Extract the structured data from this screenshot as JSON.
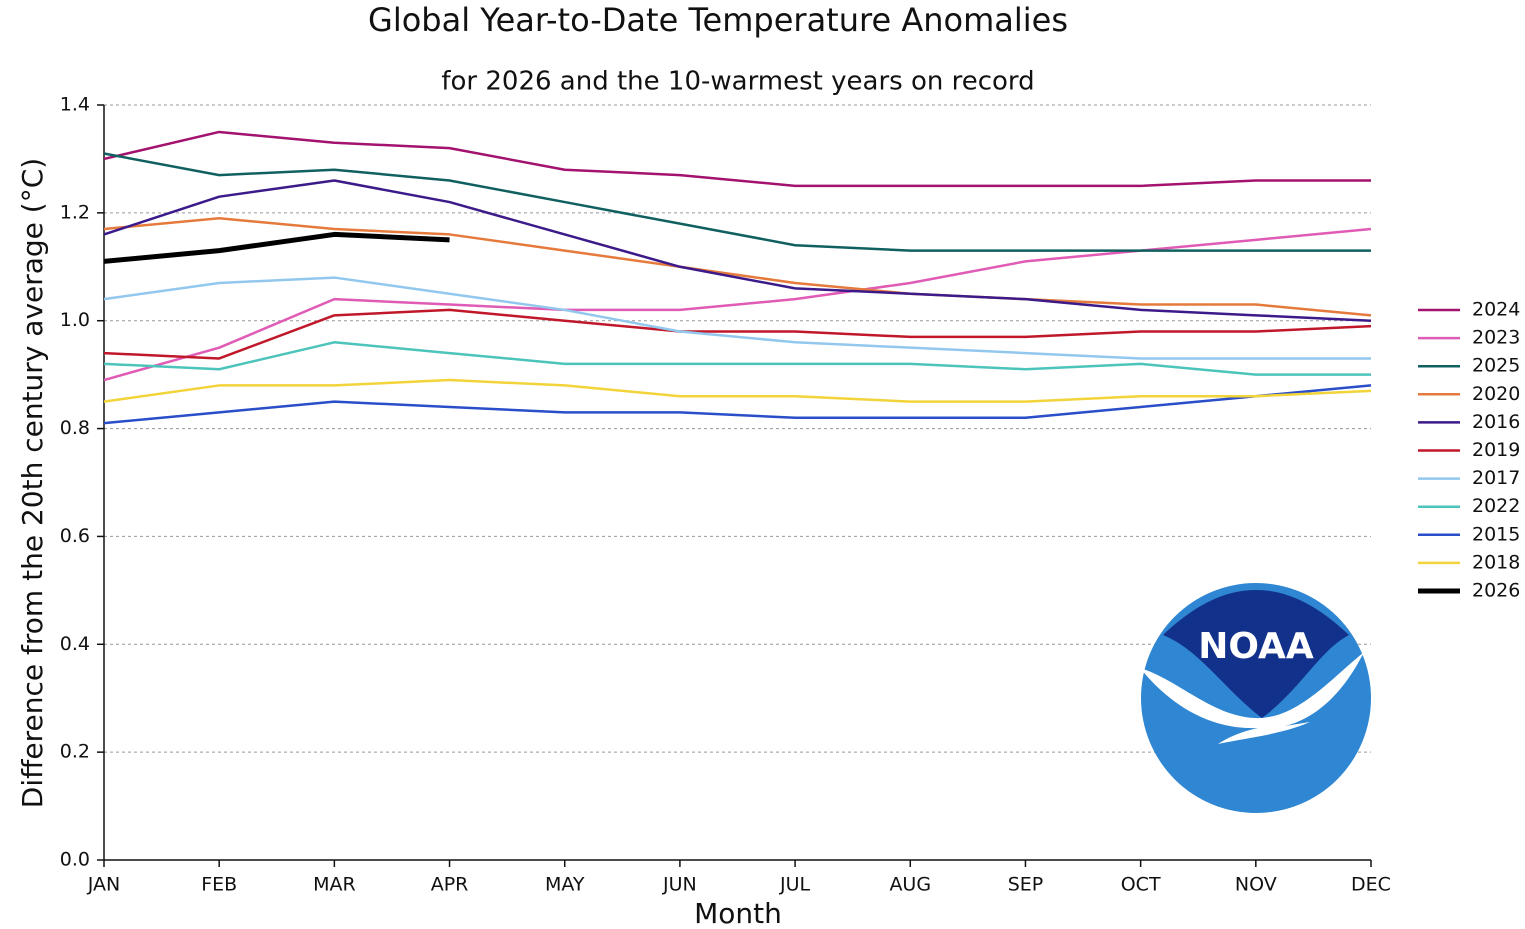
{
  "chart_data": {
    "type": "line",
    "title": "Global Year-to-Date Temperature Anomalies",
    "subtitle": "for 2026 and the 10-warmest years on record",
    "xlabel": "Month",
    "ylabel": "Difference from the 20th century average (°C)",
    "logo_text": "NOAA",
    "categories": [
      "JAN",
      "FEB",
      "MAR",
      "APR",
      "MAY",
      "JUN",
      "JUL",
      "AUG",
      "SEP",
      "OCT",
      "NOV",
      "DEC"
    ],
    "ylim": [
      0,
      1.4
    ],
    "yticks": [
      {
        "value": 0,
        "label": "0.0"
      },
      0.2,
      0.4,
      0.6,
      0.8,
      {
        "value": 1,
        "label": "1.0"
      },
      1.2,
      1.4
    ],
    "grid": true,
    "legend": "right",
    "series": [
      {
        "name": "2024",
        "color": "#a3126e",
        "width": 2.5,
        "values": [
          1.3,
          1.35,
          1.33,
          1.32,
          1.28,
          1.27,
          1.25,
          1.25,
          1.25,
          1.25,
          1.26,
          1.26
        ]
      },
      {
        "name": "2023",
        "color": "#e05bb5",
        "width": 2.5,
        "values": [
          0.89,
          0.95,
          1.04,
          1.03,
          1.02,
          1.02,
          1.04,
          1.07,
          1.11,
          1.13,
          1.15,
          1.17
        ]
      },
      {
        "name": "2025",
        "color": "#116060",
        "width": 2.5,
        "values": [
          1.31,
          1.27,
          1.28,
          1.26,
          1.22,
          1.18,
          1.14,
          1.13,
          1.13,
          1.13,
          1.13,
          1.13
        ]
      },
      {
        "name": "2020",
        "color": "#e57a3c",
        "width": 2.5,
        "values": [
          1.17,
          1.19,
          1.17,
          1.16,
          1.13,
          1.1,
          1.07,
          1.05,
          1.04,
          1.03,
          1.03,
          1.01
        ]
      },
      {
        "name": "2016",
        "color": "#3c1a8a",
        "width": 2.5,
        "values": [
          1.16,
          1.23,
          1.26,
          1.22,
          1.16,
          1.1,
          1.06,
          1.05,
          1.04,
          1.02,
          1.01,
          1.0
        ]
      },
      {
        "name": "2019",
        "color": "#c0182a",
        "width": 2.5,
        "values": [
          0.94,
          0.93,
          1.01,
          1.02,
          1.0,
          0.98,
          0.98,
          0.97,
          0.97,
          0.98,
          0.98,
          0.99
        ]
      },
      {
        "name": "2017",
        "color": "#92c8ee",
        "width": 2.5,
        "values": [
          1.04,
          1.07,
          1.08,
          1.05,
          1.02,
          0.98,
          0.96,
          0.95,
          0.94,
          0.93,
          0.93,
          0.93
        ]
      },
      {
        "name": "2022",
        "color": "#4cc4bb",
        "width": 2.5,
        "values": [
          0.92,
          0.91,
          0.96,
          0.94,
          0.92,
          0.92,
          0.92,
          0.92,
          0.91,
          0.92,
          0.9,
          0.9
        ]
      },
      {
        "name": "2015",
        "color": "#2a4ec8",
        "width": 2.5,
        "values": [
          0.81,
          0.83,
          0.85,
          0.84,
          0.83,
          0.83,
          0.82,
          0.82,
          0.82,
          0.84,
          0.86,
          0.88
        ]
      },
      {
        "name": "2018",
        "color": "#f2d43a",
        "width": 2.5,
        "values": [
          0.85,
          0.88,
          0.88,
          0.89,
          0.88,
          0.86,
          0.86,
          0.85,
          0.85,
          0.86,
          0.86,
          0.87
        ]
      },
      {
        "name": "2026",
        "color": "#000000",
        "width": 5,
        "values": [
          1.11,
          1.13,
          1.16,
          1.15,
          null,
          null,
          null,
          null,
          null,
          null,
          null,
          null
        ]
      }
    ]
  }
}
